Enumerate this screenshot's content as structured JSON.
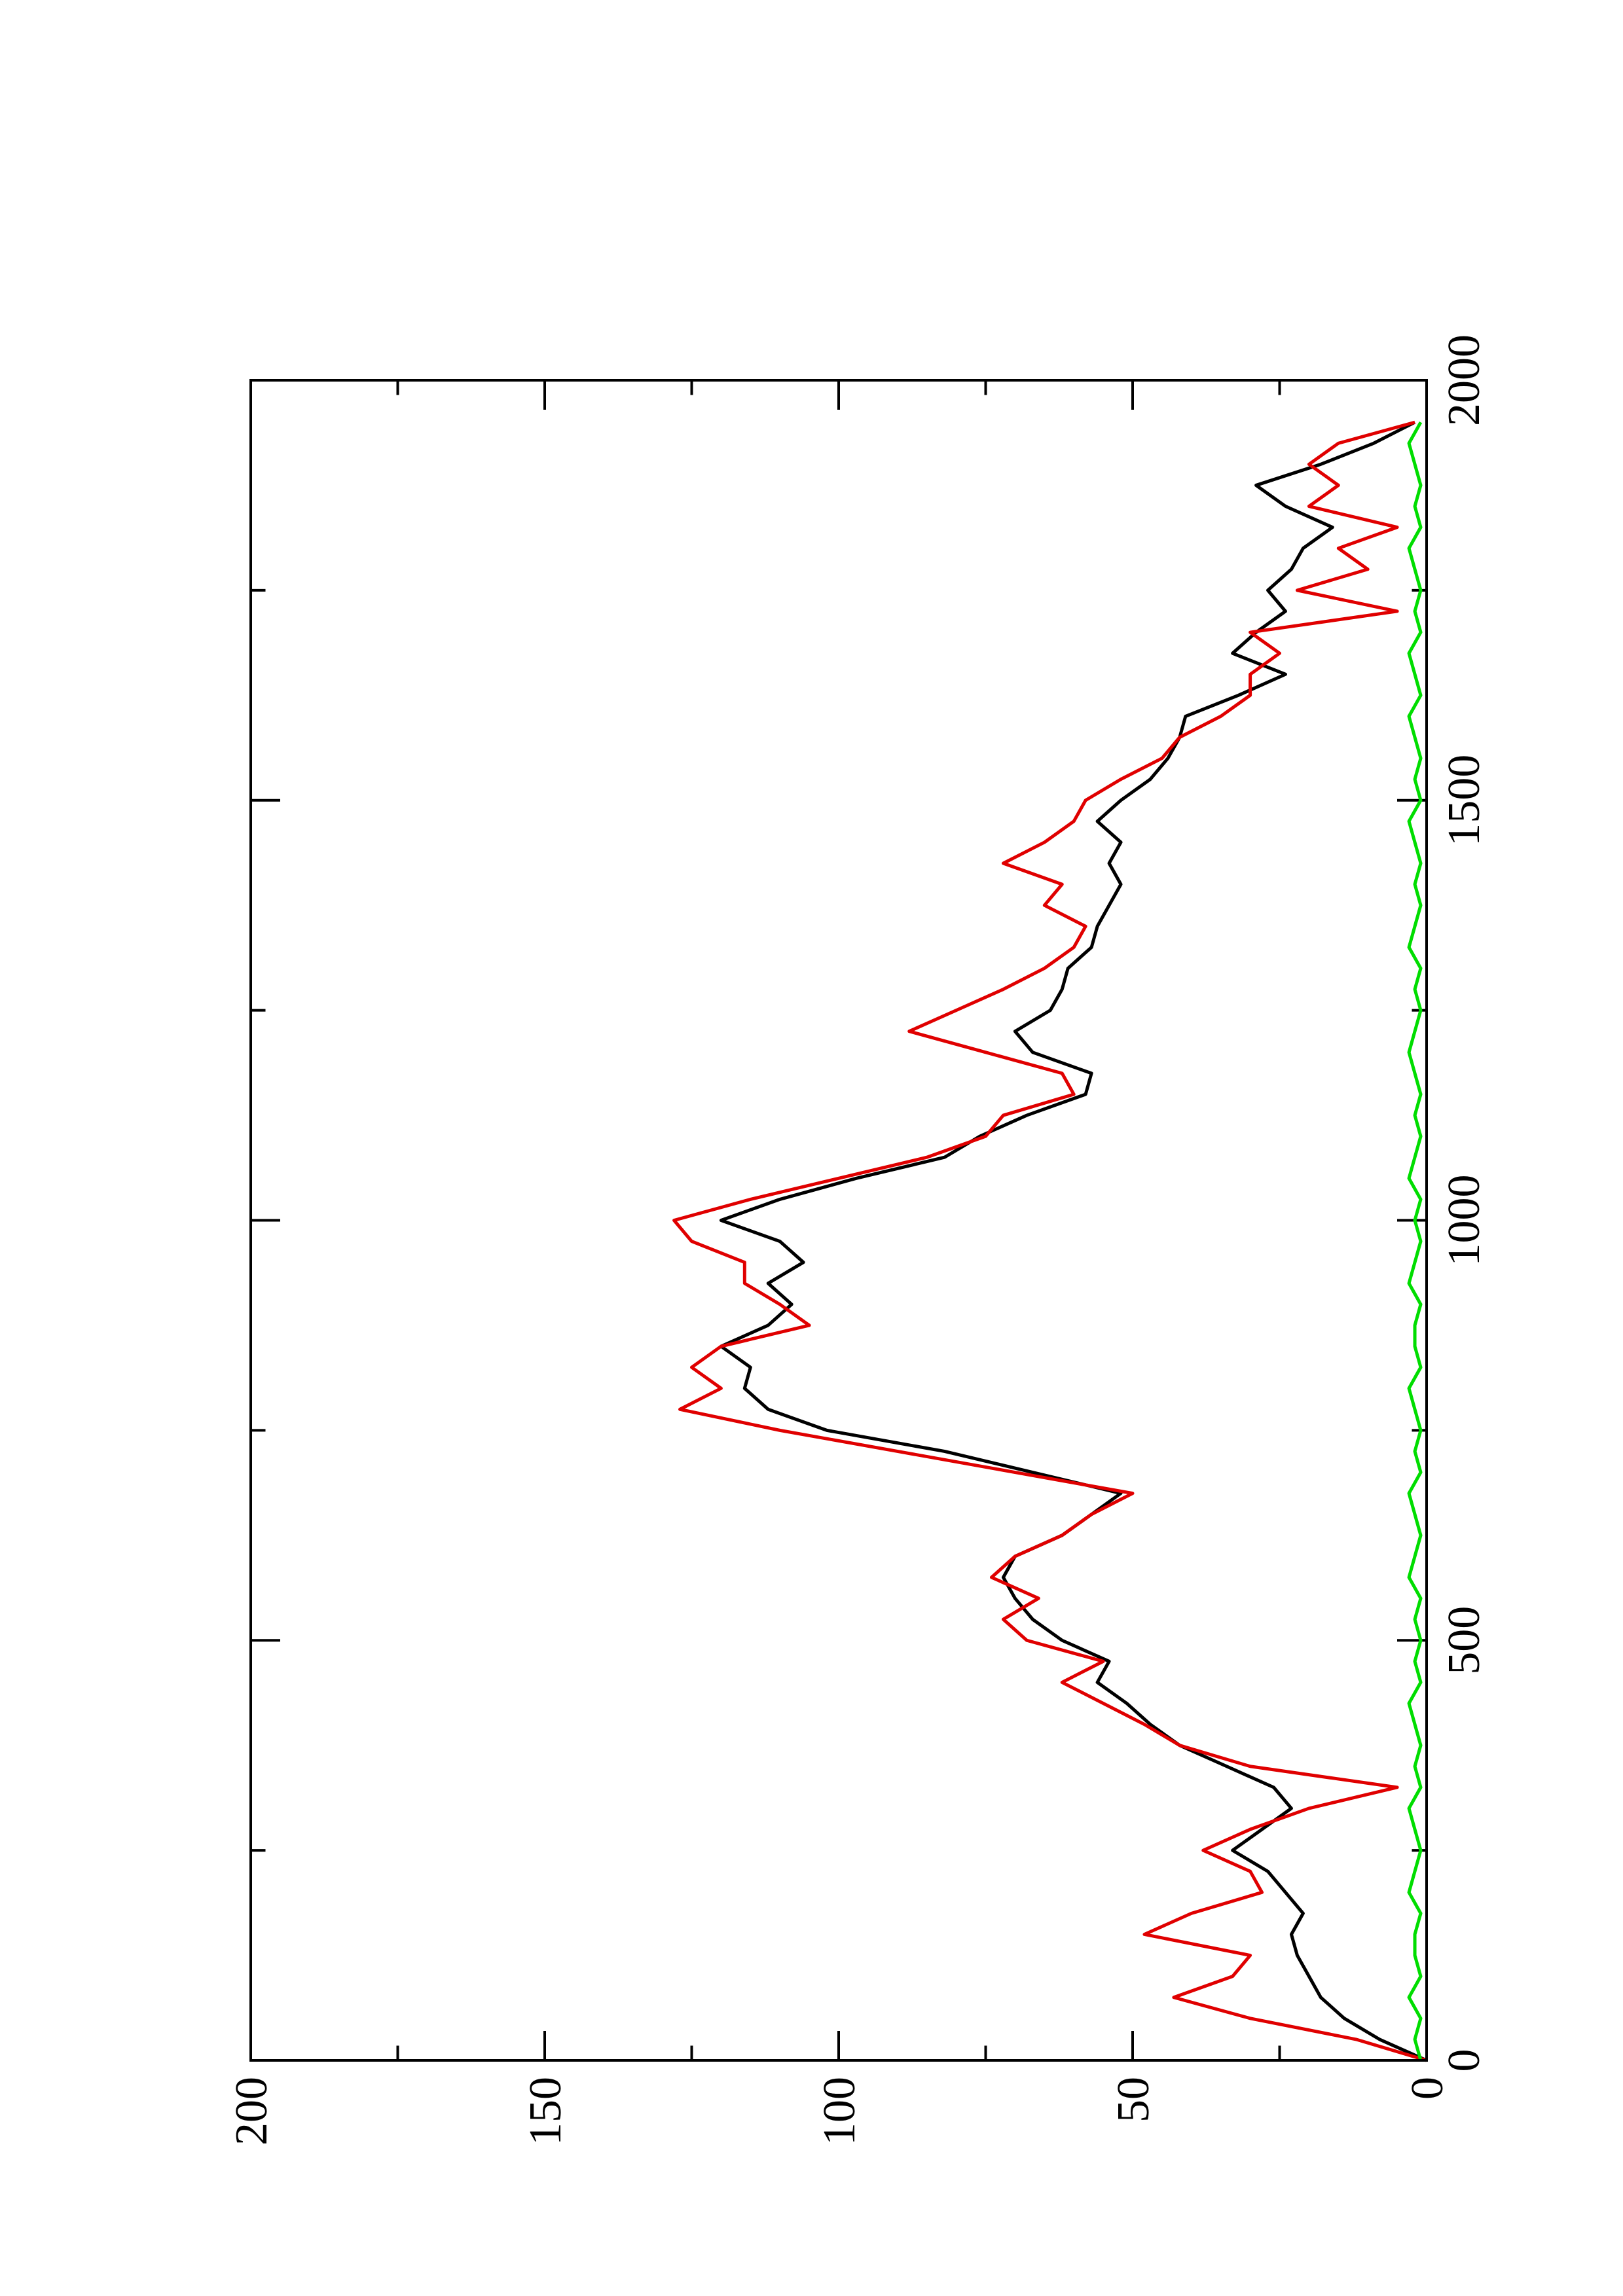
{
  "chart_data": {
    "type": "line",
    "x": [
      0,
      25,
      50,
      75,
      100,
      125,
      150,
      175,
      200,
      225,
      250,
      275,
      300,
      325,
      350,
      375,
      400,
      425,
      450,
      475,
      500,
      525,
      550,
      575,
      600,
      625,
      650,
      675,
      700,
      725,
      750,
      775,
      800,
      825,
      850,
      875,
      900,
      925,
      950,
      975,
      1000,
      1025,
      1050,
      1075,
      1100,
      1125,
      1150,
      1175,
      1200,
      1225,
      1250,
      1275,
      1300,
      1325,
      1350,
      1375,
      1400,
      1425,
      1450,
      1475,
      1500,
      1525,
      1550,
      1575,
      1600,
      1625,
      1650,
      1675,
      1700,
      1725,
      1750,
      1775,
      1800,
      1825,
      1850,
      1875,
      1900,
      1925,
      1950
    ],
    "series": [
      {
        "color": "#000000",
        "values": [
          0,
          8,
          14,
          18,
          20,
          22,
          23,
          21,
          24,
          27,
          33,
          28,
          23,
          26,
          34,
          42,
          47,
          51,
          56,
          54,
          62,
          67,
          70,
          72,
          70,
          62,
          57,
          52,
          67,
          82,
          102,
          112,
          116,
          115,
          120,
          112,
          108,
          112,
          106,
          110,
          120,
          110,
          97,
          82,
          76,
          68,
          58,
          57,
          67,
          70,
          64,
          62,
          61,
          57,
          56,
          54,
          52,
          54,
          52,
          56,
          52,
          47,
          44,
          42,
          41,
          32,
          24,
          33,
          29,
          24,
          27,
          23,
          21,
          16,
          24,
          29,
          18,
          9,
          2
        ]
      },
      {
        "color": "#e00000",
        "values": [
          0,
          12,
          30,
          43,
          33,
          30,
          48,
          40,
          28,
          30,
          38,
          30,
          20,
          5,
          30,
          42,
          48,
          55,
          62,
          55,
          68,
          72,
          66,
          74,
          70,
          62,
          57,
          50,
          70,
          90,
          110,
          127,
          120,
          125,
          120,
          105,
          110,
          116,
          116,
          125,
          128,
          115,
          100,
          85,
          75,
          72,
          60,
          62,
          75,
          88,
          80,
          72,
          65,
          60,
          58,
          65,
          62,
          72,
          65,
          60,
          58,
          52,
          45,
          42,
          35,
          30,
          30,
          25,
          30,
          5,
          22,
          10,
          15,
          5,
          20,
          15,
          20,
          15,
          2
        ]
      },
      {
        "color": "#00dd00",
        "values": [
          1,
          2,
          1,
          3,
          1,
          2,
          2,
          1,
          3,
          2,
          1,
          2,
          3,
          1,
          2,
          1,
          2,
          3,
          1,
          2,
          1,
          2,
          1,
          3,
          2,
          1,
          2,
          3,
          1,
          2,
          1,
          2,
          3,
          1,
          2,
          2,
          1,
          3,
          2,
          1,
          2,
          1,
          3,
          2,
          1,
          2,
          1,
          2,
          3,
          2,
          1,
          2,
          1,
          3,
          2,
          1,
          2,
          1,
          2,
          3,
          1,
          2,
          1,
          2,
          3,
          1,
          2,
          3,
          1,
          2,
          1,
          2,
          3,
          1,
          2,
          1,
          2,
          3,
          1
        ]
      }
    ],
    "xlim": [
      0,
      2000
    ],
    "xticks": [
      0,
      500,
      1000,
      1500,
      2000
    ],
    "xticks_minor": [
      250,
      750,
      1250,
      1750
    ],
    "ylim": [
      0,
      200
    ],
    "yticks": [
      0,
      50,
      100,
      150,
      200
    ],
    "yticks_minor": [
      25,
      75,
      125,
      175
    ],
    "rotation": -90
  }
}
